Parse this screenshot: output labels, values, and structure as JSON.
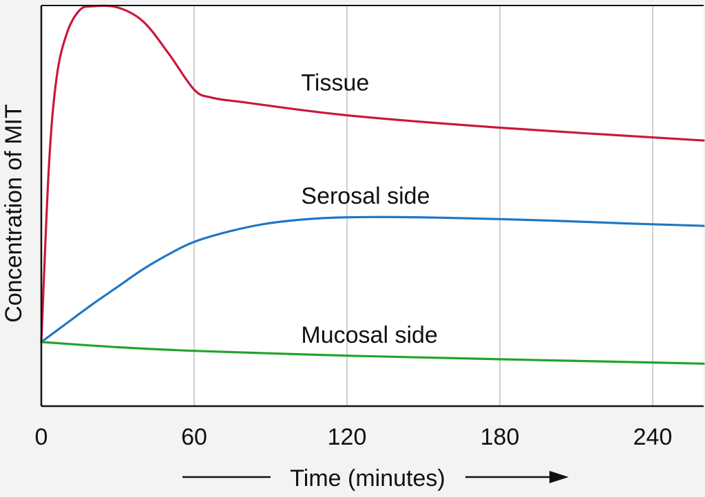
{
  "chart_data": {
    "type": "line",
    "title": "",
    "xlabel": "Time (minutes)",
    "ylabel": "Concentration of MIT",
    "xlim": [
      0,
      260
    ],
    "ylim": [
      0,
      100
    ],
    "x_ticks": [
      0,
      60,
      120,
      180,
      240
    ],
    "grid": "vertical",
    "legend": "inline labels",
    "series": [
      {
        "name": "Tissue",
        "color": "#c8193c",
        "points": [
          [
            0,
            16
          ],
          [
            3,
            60
          ],
          [
            6,
            82
          ],
          [
            10,
            93
          ],
          [
            15,
            98.8
          ],
          [
            20,
            99.8
          ],
          [
            30,
            99.5
          ],
          [
            40,
            96
          ],
          [
            50,
            88
          ],
          [
            60,
            79
          ],
          [
            67,
            77
          ],
          [
            80,
            75.8
          ],
          [
            120,
            72.6
          ],
          [
            180,
            69.5
          ],
          [
            260,
            66.3
          ]
        ]
      },
      {
        "name": "Serosal side",
        "color": "#1f77c4",
        "points": [
          [
            0,
            16
          ],
          [
            10,
            20.7
          ],
          [
            20,
            25.4
          ],
          [
            30,
            29.8
          ],
          [
            40,
            34.2
          ],
          [
            50,
            37.9
          ],
          [
            60,
            41
          ],
          [
            75,
            43.8
          ],
          [
            90,
            45.7
          ],
          [
            110,
            46.9
          ],
          [
            130,
            47.2
          ],
          [
            160,
            47.0
          ],
          [
            200,
            46.3
          ],
          [
            230,
            45.6
          ],
          [
            260,
            45
          ]
        ]
      },
      {
        "name": "Mucosal side",
        "color": "#22a32a",
        "points": [
          [
            0,
            16
          ],
          [
            30,
            14.7
          ],
          [
            60,
            13.8
          ],
          [
            120,
            12.6
          ],
          [
            180,
            11.7
          ],
          [
            240,
            10.9
          ],
          [
            260,
            10.6
          ]
        ]
      }
    ]
  }
}
